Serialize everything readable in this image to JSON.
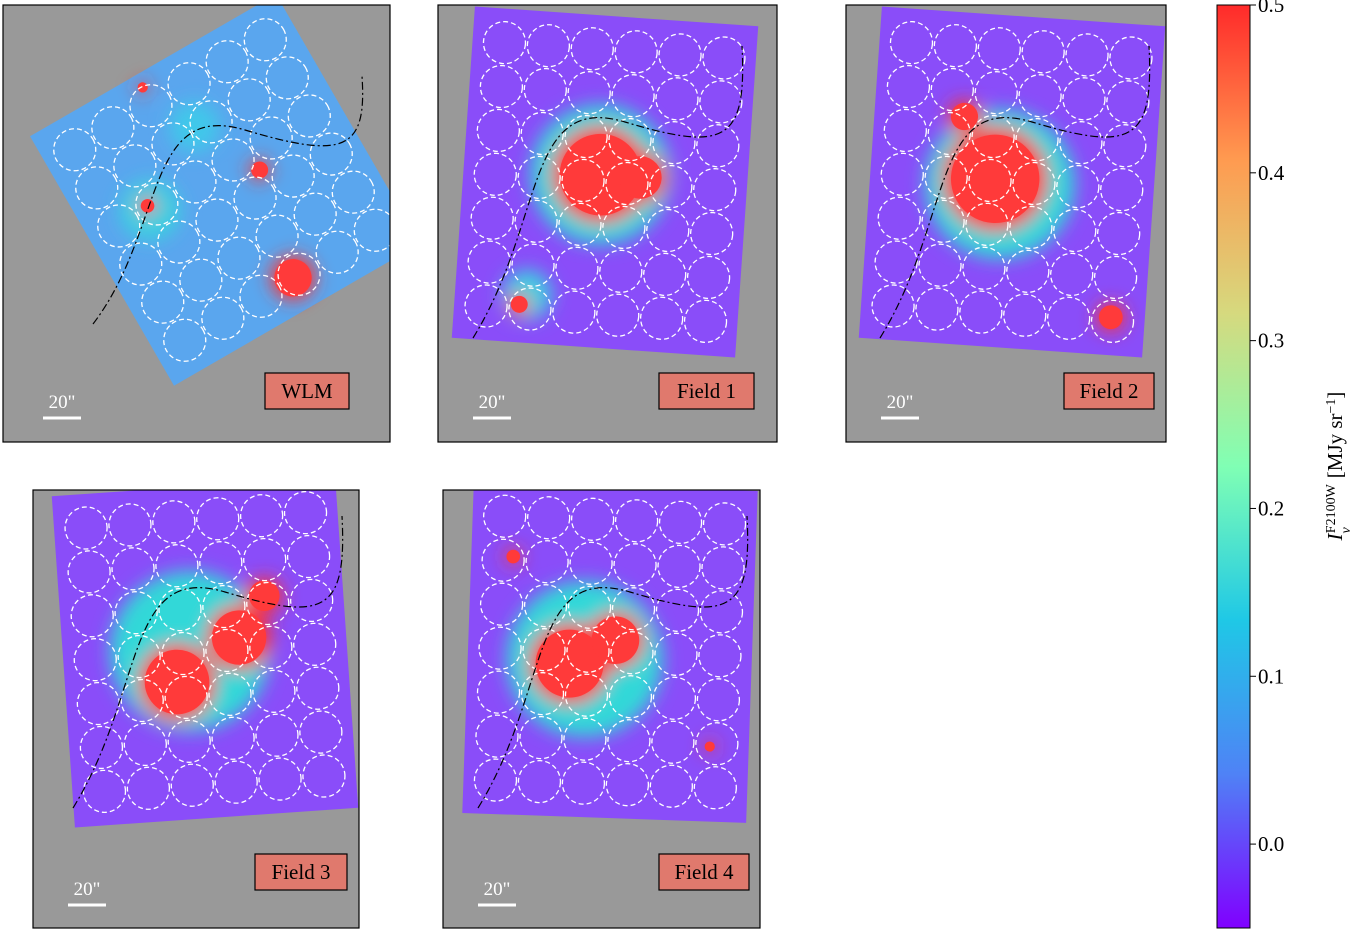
{
  "panels": [
    {
      "label": "WLM",
      "scale_label": "20\""
    },
    {
      "label": "Field 1",
      "scale_label": "20\""
    },
    {
      "label": "Field 2",
      "scale_label": "20\""
    },
    {
      "label": "Field 3",
      "scale_label": "20\""
    },
    {
      "label": "Field 4",
      "scale_label": "20\""
    }
  ],
  "colorbar": {
    "ylim": [
      -0.05,
      0.5
    ],
    "yticks": [
      {
        "value": 0,
        "label": "0.0"
      },
      0.1,
      0.2,
      0.3,
      0.4,
      0.5
    ],
    "colors": [
      "#8000ff",
      "#4f82f6",
      "#1fc8e6",
      "#80ffb4",
      "#d6d97e",
      "#ff9a50",
      "#ff2a2a"
    ],
    "label": {
      "symbol": "I",
      "sub": "ν",
      "sup": "F2100W",
      "unit": "[MJy sr",
      "unit_sup": "−1",
      "close": "]"
    }
  }
}
